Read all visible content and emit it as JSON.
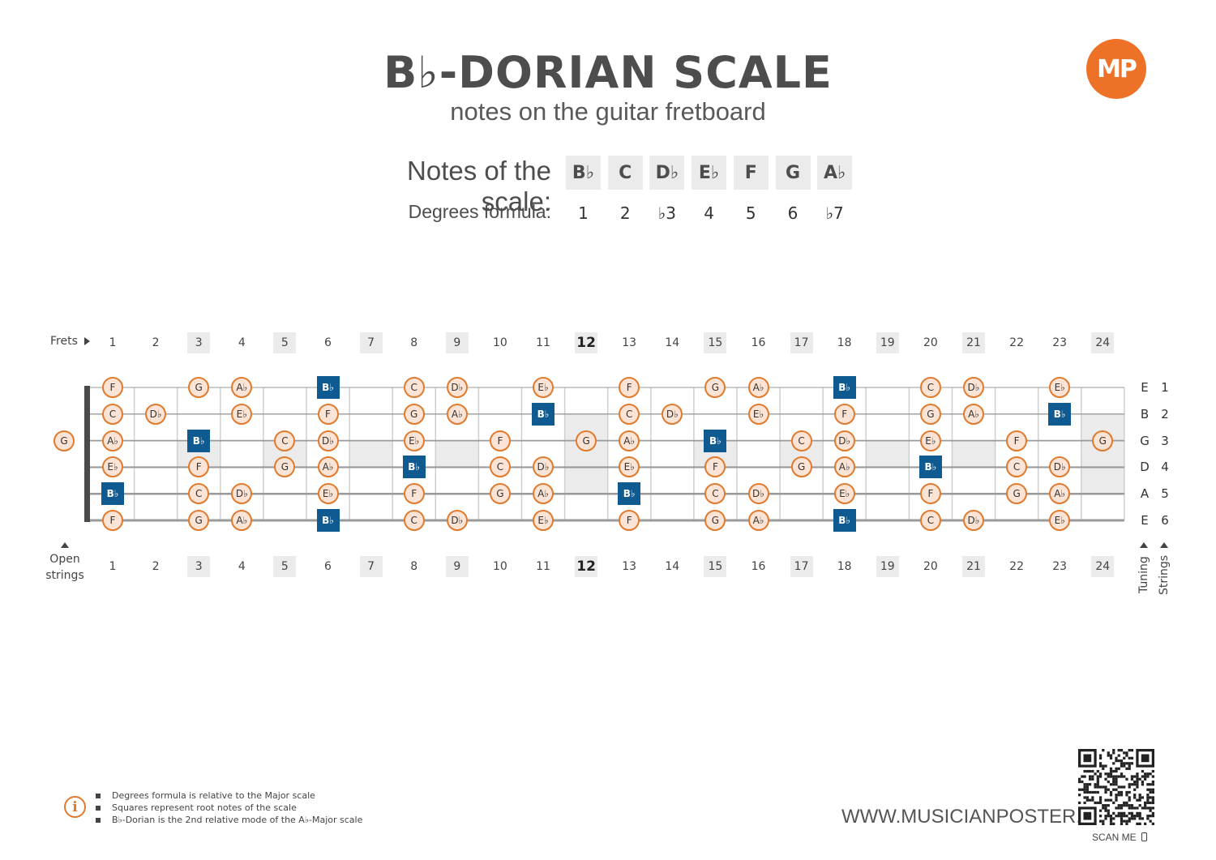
{
  "header": {
    "title": "B♭-DORIAN SCALE",
    "subtitle": "notes on the guitar fretboard",
    "logo_text": "MP"
  },
  "scale": {
    "notes_label": "Notes of the scale:",
    "degrees_label": "Degrees formula:",
    "notes": [
      "B♭",
      "C",
      "D♭",
      "E♭",
      "F",
      "G",
      "A♭"
    ],
    "degrees": [
      "1",
      "2",
      "♭3",
      "4",
      "5",
      "6",
      "♭7"
    ]
  },
  "fretboard": {
    "frets_label": "Frets",
    "open_label_line1": "Open",
    "open_label_line2": "strings",
    "tuning_label": "Tuning",
    "strings_label": "Strings",
    "fret_numbers": [
      "1",
      "2",
      "3",
      "4",
      "5",
      "6",
      "7",
      "8",
      "9",
      "10",
      "11",
      "12",
      "13",
      "14",
      "15",
      "16",
      "17",
      "18",
      "19",
      "20",
      "21",
      "22",
      "23",
      "24"
    ],
    "marked_frets": [
      3,
      5,
      7,
      9,
      12,
      15,
      17,
      19,
      21,
      24
    ],
    "tuning": [
      "E",
      "B",
      "G",
      "D",
      "A",
      "E"
    ],
    "string_numbers": [
      "1",
      "2",
      "3",
      "4",
      "5",
      "6"
    ],
    "open_string_notes": [
      "",
      "",
      "G",
      "",
      "",
      ""
    ],
    "root_note": "Bb",
    "strings": [
      [
        "F",
        "",
        "G",
        "Ab",
        "",
        "Bb",
        "",
        "C",
        "Db",
        "",
        "Eb",
        "",
        "F",
        "",
        "G",
        "Ab",
        "",
        "Bb",
        "",
        "C",
        "Db",
        "",
        "Eb",
        ""
      ],
      [
        "C",
        "Db",
        "",
        "Eb",
        "",
        "F",
        "",
        "G",
        "Ab",
        "",
        "Bb",
        "",
        "C",
        "Db",
        "",
        "Eb",
        "",
        "F",
        "",
        "G",
        "Ab",
        "",
        "Bb",
        ""
      ],
      [
        "Ab",
        "",
        "Bb",
        "",
        "C",
        "Db",
        "",
        "Eb",
        "",
        "F",
        "",
        "G",
        "Ab",
        "",
        "Bb",
        "",
        "C",
        "Db",
        "",
        "Eb",
        "",
        "F",
        "",
        "G"
      ],
      [
        "Eb",
        "",
        "F",
        "",
        "G",
        "Ab",
        "",
        "Bb",
        "",
        "C",
        "Db",
        "",
        "Eb",
        "",
        "F",
        "",
        "G",
        "Ab",
        "",
        "Bb",
        "",
        "C",
        "Db",
        ""
      ],
      [
        "Bb",
        "",
        "C",
        "Db",
        "",
        "Eb",
        "",
        "F",
        "",
        "G",
        "Ab",
        "",
        "Bb",
        "",
        "C",
        "Db",
        "",
        "Eb",
        "",
        "F",
        "",
        "G",
        "Ab",
        ""
      ],
      [
        "F",
        "",
        "G",
        "Ab",
        "",
        "Bb",
        "",
        "C",
        "Db",
        "",
        "Eb",
        "",
        "F",
        "",
        "G",
        "Ab",
        "",
        "Bb",
        "",
        "C",
        "Db",
        "",
        "Eb",
        ""
      ]
    ]
  },
  "footer": {
    "info_items": [
      "Degrees formula is relative to the Major scale",
      "Squares represent root notes of the scale",
      "B♭-Dorian is the 2nd relative mode of the A♭-Major scale"
    ],
    "website": "WWW.MUSICIANPOSTER.COM",
    "scan_label": "SCAN ME"
  },
  "colors": {
    "note_fill": "#fbe4d5",
    "note_border": "#e07a2e",
    "root_fill": "#0e5a91",
    "accent": "#ee7128",
    "marker_fill": "#ebebeb"
  }
}
